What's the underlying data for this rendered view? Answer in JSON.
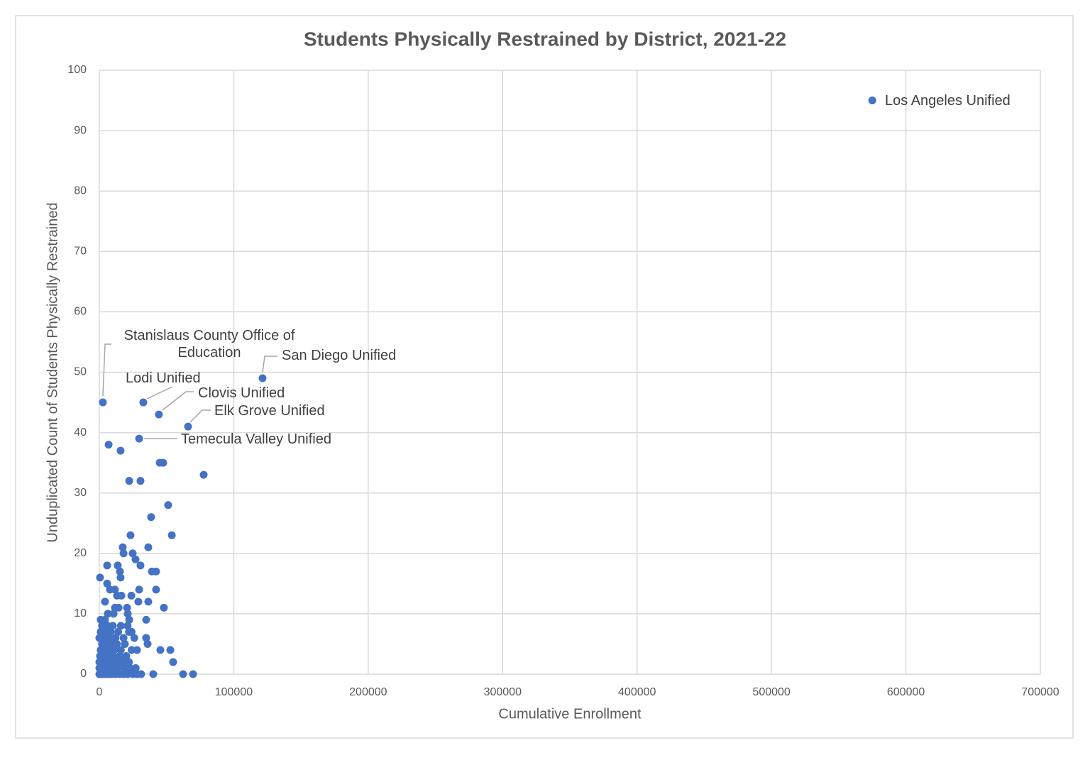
{
  "chart_data": {
    "type": "scatter",
    "title": "Students Physically Restrained by District, 2021-22",
    "x_label": "Cumulative Enrollment",
    "y_label": "Unduplicated Count of Students Physically Restrained",
    "xlim": [
      0,
      700000
    ],
    "ylim": [
      0,
      100
    ],
    "xticks": [
      0,
      100000,
      200000,
      300000,
      400000,
      500000,
      600000,
      700000
    ],
    "yticks": [
      0,
      10,
      20,
      30,
      40,
      50,
      60,
      70,
      80,
      90,
      100
    ],
    "grid": true,
    "series": [
      {
        "color": "#4472c4",
        "x": [
          575000,
          2600,
          32700,
          44300,
          121400,
          66000,
          29600,
          6900,
          15800,
          22200,
          30600,
          44900,
          47500,
          77600,
          51200,
          38500,
          23200,
          53900,
          17400,
          36400,
          18000,
          24800,
          26900,
          5800,
          13700,
          30600,
          39100,
          42200,
          15300,
          500,
          15800,
          5800,
          7900,
          11600,
          29600,
          42200,
          13200,
          16400,
          23800,
          4200,
          29000,
          36400,
          48000,
          11600,
          14300,
          20600,
          6300,
          10600,
          21100,
          1000,
          4200,
          22200,
          34800,
          34800,
          35900,
          45400,
          52800,
          54900,
          40100,
          62300,
          69700,
          31100,
          0,
          1000,
          2000,
          3000,
          5000,
          7000,
          9000,
          12000,
          15000,
          18000,
          21000,
          25000,
          28000,
          0,
          2500,
          4500,
          8000,
          11000,
          14000,
          19000,
          23000,
          27000,
          0,
          3000,
          6000,
          9000,
          13000,
          17000,
          22000,
          500,
          4000,
          7500,
          10000,
          15000,
          20000,
          1000,
          3500,
          6500,
          11000,
          16000,
          24000,
          28000,
          2000,
          5000,
          9000,
          13000,
          19000,
          0,
          3000,
          7000,
          12000,
          18000,
          26000,
          1000,
          4000,
          8500,
          14000,
          22000,
          24000,
          2000,
          6000,
          10000,
          16000,
          21000
        ],
        "values": [
          95,
          45,
          45,
          43,
          49,
          41,
          39,
          38,
          37,
          32,
          32,
          35,
          35,
          33,
          28,
          26,
          23,
          23,
          21,
          21,
          20,
          20,
          19,
          18,
          18,
          18,
          17,
          17,
          17,
          16,
          16,
          15,
          14,
          14,
          14,
          14,
          13,
          13,
          13,
          12,
          12,
          12,
          11,
          11,
          11,
          11,
          10,
          10,
          10,
          9,
          9,
          9,
          9,
          6,
          5,
          4,
          4,
          2,
          0,
          0,
          0,
          0,
          0,
          0,
          0,
          0,
          0,
          0,
          0,
          0,
          0,
          0,
          0,
          0,
          0,
          1,
          1,
          1,
          1,
          1,
          1,
          1,
          1,
          1,
          2,
          2,
          2,
          2,
          2,
          2,
          2,
          3,
          3,
          3,
          3,
          3,
          3,
          4,
          4,
          4,
          4,
          4,
          4,
          4,
          5,
          5,
          5,
          5,
          5,
          6,
          6,
          6,
          6,
          6,
          6,
          7,
          7,
          7,
          7,
          7,
          7,
          8,
          8,
          8,
          8,
          8
        ],
        "labels": [
          "Los Angeles Unified",
          "Stanislaus County Office of Education",
          "Lodi Unified",
          "Clovis Unified",
          "San Diego Unified",
          "Elk Grove Unified",
          "Temecula Valley Unified",
          null,
          null,
          null,
          null,
          null,
          null,
          null,
          null,
          null,
          null,
          null,
          null,
          null,
          null,
          null,
          null,
          null,
          null,
          null,
          null,
          null,
          null,
          null,
          null,
          null,
          null,
          null,
          null,
          null,
          null,
          null,
          null,
          null,
          null,
          null,
          null,
          null,
          null,
          null,
          null,
          null,
          null,
          null,
          null,
          null,
          null,
          null,
          null,
          null,
          null,
          null,
          null,
          null,
          null,
          null,
          null,
          null,
          null,
          null,
          null,
          null,
          null,
          null,
          null,
          null,
          null,
          null,
          null,
          null,
          null,
          null,
          null,
          null,
          null,
          null,
          null,
          null,
          null,
          null,
          null,
          null,
          null,
          null,
          null,
          null,
          null,
          null,
          null,
          null,
          null,
          null,
          null,
          null,
          null,
          null,
          null,
          null,
          null,
          null,
          null,
          null,
          null,
          null,
          null,
          null,
          null,
          null,
          null,
          null,
          null,
          null,
          null,
          null,
          null,
          null,
          null,
          null,
          null,
          null
        ]
      }
    ]
  }
}
